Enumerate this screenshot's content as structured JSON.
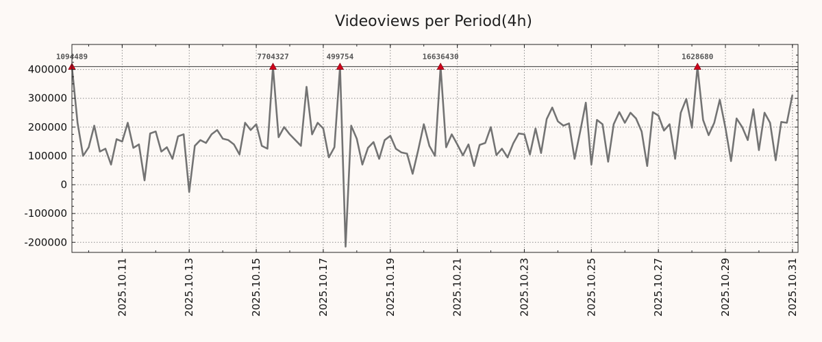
{
  "chart_data": {
    "type": "line",
    "title": "Videoviews per Period(4h)",
    "xlabel": "",
    "ylabel": "",
    "ylim": [
      -235000,
      487000
    ],
    "yticks": [
      {
        "value": 400000,
        "label": "400000"
      },
      {
        "value": 300000,
        "label": "300000"
      },
      {
        "value": 200000,
        "label": "200000"
      },
      {
        "value": 100000,
        "label": "100000"
      },
      {
        "value": 0,
        "label": "0"
      },
      {
        "value": -100000,
        "label": "-100000"
      },
      {
        "value": -200000,
        "label": "-200000"
      }
    ],
    "xlim": [
      0,
      130
    ],
    "xticks": [
      {
        "x": 9,
        "label": "2025.10.11"
      },
      {
        "x": 21,
        "label": "2025.10.13"
      },
      {
        "x": 33,
        "label": "2025.10.15"
      },
      {
        "x": 45,
        "label": "2025.10.17"
      },
      {
        "x": 57,
        "label": "2025.10.19"
      },
      {
        "x": 69,
        "label": "2025.10.21"
      },
      {
        "x": 81,
        "label": "2025.10.23"
      },
      {
        "x": 93,
        "label": "2025.10.25"
      },
      {
        "x": 105,
        "label": "2025.10.27"
      },
      {
        "x": 117,
        "label": "2025.10.29"
      },
      {
        "x": 129,
        "label": "2025.10.31"
      }
    ],
    "grid": true,
    "cap_line": 410000,
    "line_color": "#737373",
    "marker_color": "#d0021b",
    "series": [
      {
        "name": "Videoviews",
        "values": [
          410000,
          215000,
          100000,
          130000,
          205000,
          115000,
          125000,
          70000,
          158000,
          150000,
          215000,
          128000,
          140000,
          15000,
          178000,
          185000,
          115000,
          130000,
          90000,
          168000,
          175000,
          -25000,
          135000,
          155000,
          145000,
          175000,
          190000,
          160000,
          155000,
          140000,
          105000,
          215000,
          190000,
          210000,
          135000,
          125000,
          410000,
          165000,
          200000,
          175000,
          155000,
          135000,
          340000,
          175000,
          215000,
          195000,
          95000,
          130000,
          410000,
          -215000,
          205000,
          160000,
          70000,
          128000,
          148000,
          90000,
          155000,
          170000,
          125000,
          112000,
          108000,
          38000,
          120000,
          210000,
          135000,
          100000,
          410000,
          130000,
          175000,
          140000,
          102000,
          140000,
          65000,
          138000,
          145000,
          200000,
          103000,
          125000,
          95000,
          143000,
          178000,
          175000,
          105000,
          195000,
          110000,
          228000,
          268000,
          220000,
          205000,
          213000,
          90000,
          185000,
          285000,
          70000,
          225000,
          210000,
          80000,
          210000,
          252000,
          215000,
          250000,
          230000,
          185000,
          65000,
          252000,
          240000,
          188000,
          210000,
          90000,
          250000,
          298000,
          198000,
          410000,
          225000,
          172000,
          215000,
          295000,
          198000,
          82000,
          230000,
          200000,
          155000,
          262000,
          120000,
          250000,
          215000,
          85000,
          218000,
          215000,
          312000
        ]
      }
    ],
    "annotations": [
      {
        "index": 0,
        "label": "1094489"
      },
      {
        "index": 36,
        "label": "7704327"
      },
      {
        "index": 48,
        "label": "499754"
      },
      {
        "index": 66,
        "label": "16636430"
      },
      {
        "index": 112,
        "label": "1628680"
      }
    ]
  }
}
